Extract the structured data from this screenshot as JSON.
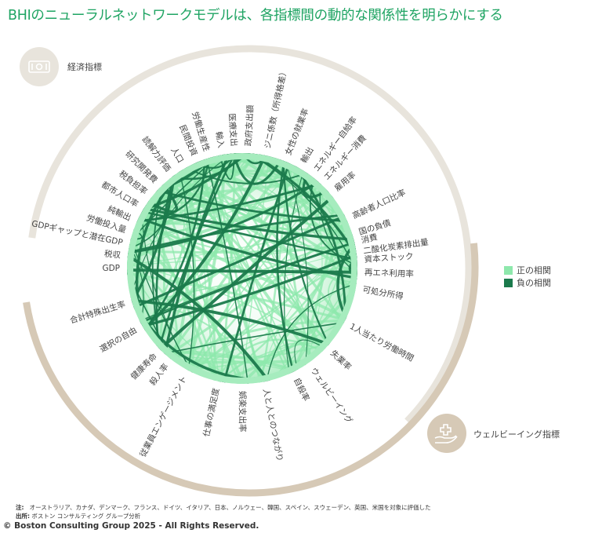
{
  "title": "BHIのニューラルネットワークモデルは、各指標間の動的な関係性を明らかにする",
  "categories": {
    "economic": {
      "label": "経済指標",
      "icon": "banknote-icon",
      "color": "#e8e4dc"
    },
    "wellbeing": {
      "label": "ウェルビーイング指標",
      "icon": "hand-medical-cross-icon",
      "color": "#d6c9b6"
    }
  },
  "legend": [
    {
      "label": "正の相関",
      "color": "#8ee8ac"
    },
    {
      "label": "負の相関",
      "color": "#1b7a4c"
    }
  ],
  "nodes": [
    "GDP",
    "税収",
    "GDPギャップと潜在GDP",
    "労働投入量",
    "純輸出",
    "都市人口率",
    "税負担率",
    "研究開発費",
    "読解力評価",
    "人口",
    "民間投資",
    "労働生産性",
    "輸入",
    "医療支出",
    "政府支出額",
    "ジニ係数（所得格差）",
    "女性の就業率",
    "輸出",
    "エネルギー自給率",
    "エネルギー消費",
    "雇用率",
    "高齢者人口比率",
    "国の負債",
    "消費",
    "二酸化炭素排出量",
    "資本ストック",
    "再エネ利用率",
    "可処分所得",
    "1人当たり労働時間",
    "失業率",
    "ウェルビーイング",
    "自殺率",
    "人と人とのつながり",
    "娯楽支出率",
    "仕事の満足度",
    "従業員エンゲージメント",
    "殺人率",
    "健康寿命",
    "選択の自由",
    "合計特殊出生率"
  ],
  "colors": {
    "title": "#1fa463",
    "disc": "#a6ecbe",
    "positive": "#8ee8ac",
    "negative": "#1b7a4c"
  },
  "notes": {
    "note_label": "注:",
    "note_text": "オーストラリア、カナダ、デンマーク、フランス、ドイツ、イタリア、日本、ノルウェー、韓国、スペイン、スウェーデン、英国、米国を対象に評価した",
    "source_label": "出所:",
    "source_text": "ボストン コンサルティング グループ分析"
  },
  "copyright": "© Boston Consulting Group 2025 - All Rights Reserved."
}
